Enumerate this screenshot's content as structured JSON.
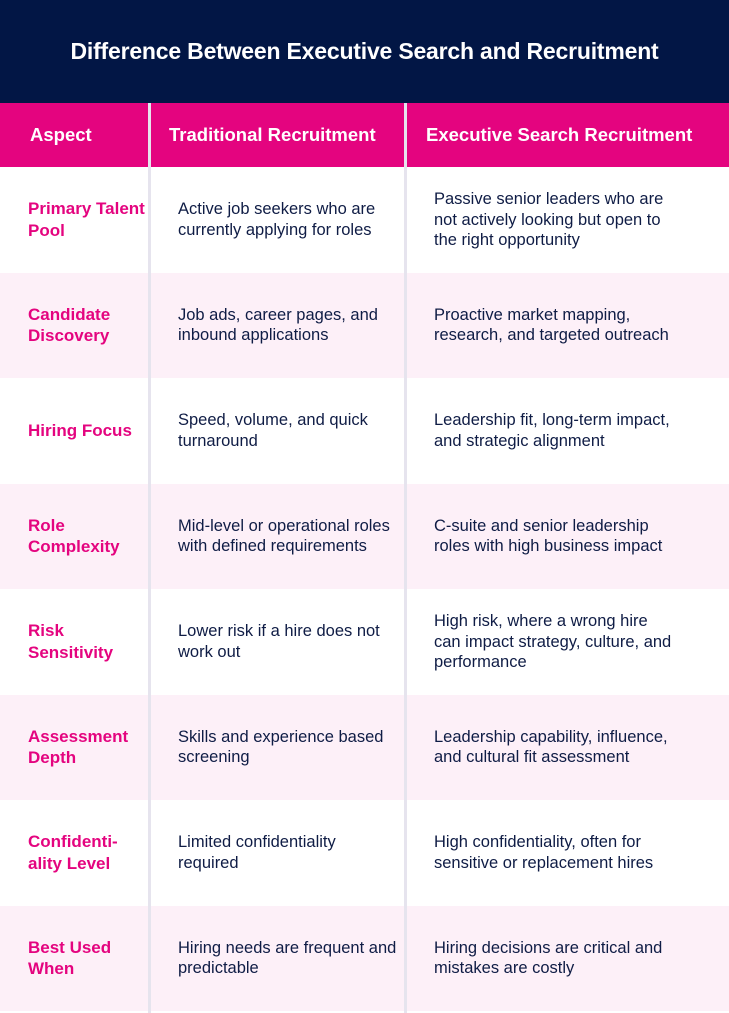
{
  "title": "Difference Between Executive Search and Recruitment",
  "colors": {
    "header_bg": "#021645",
    "accent": "#e4047f",
    "alt_row": "#fdf0f8",
    "text": "#0f1c45"
  },
  "columns": [
    "Aspect",
    "Traditional Recruitment",
    "Executive Search Recruitment"
  ],
  "rows": [
    {
      "aspect": "Primary Talent Pool",
      "traditional": "Active job seekers who are currently applying for roles",
      "executive": "Passive senior leaders who are not actively looking but open to the right opportunity"
    },
    {
      "aspect": "Candidate Discovery",
      "traditional": "Job ads, career pages, and inbound applications",
      "executive": "Proactive market mapping, research, and targeted outreach"
    },
    {
      "aspect": "Hiring Focus",
      "traditional": "Speed, volume, and quick turnaround",
      "executive": "Leadership fit, long-term impact, and strategic alignment"
    },
    {
      "aspect": "Role Complexity",
      "traditional": "Mid-level or operational roles with defined requirements",
      "executive": "C-suite and senior leadership roles with high business impact"
    },
    {
      "aspect": "Risk Sensitivity",
      "traditional": "Lower risk if a hire does not work out",
      "executive": "High risk, where a wrong hire can impact strategy, culture, and performance"
    },
    {
      "aspect": "Assessment Depth",
      "traditional": "Skills and experience based screening",
      "executive": "Leadership capability, influence, and cultural fit assessment"
    },
    {
      "aspect": "Confidenti-ality Level",
      "traditional": "Limited confidentiality required",
      "executive": "High confidentiality, often for sensitive or replacement hires"
    },
    {
      "aspect": "Best Used When",
      "traditional": "Hiring needs are frequent and predictable",
      "executive": "Hiring decisions are critical and mistakes are costly"
    }
  ]
}
